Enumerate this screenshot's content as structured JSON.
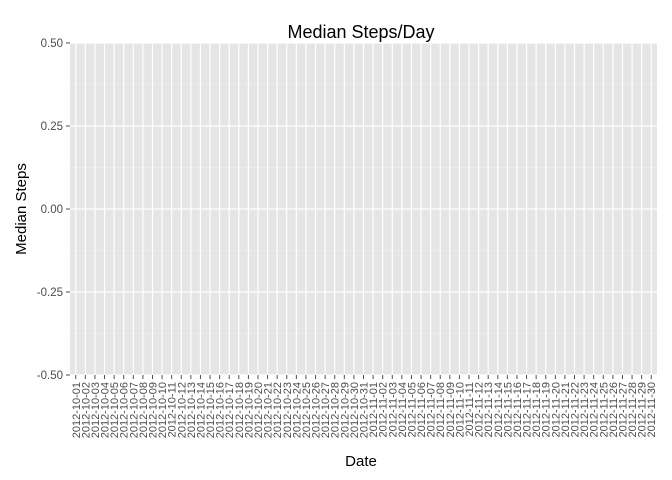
{
  "chart_data": {
    "type": "bar",
    "title": "Median Steps/Day",
    "xlabel": "Date",
    "ylabel": "Median Steps",
    "ylim": [
      -0.5,
      0.5
    ],
    "yticks": [
      "0.50",
      "0.25",
      "0.00",
      "-0.25",
      "-0.50"
    ],
    "ytick_values": [
      0.5,
      0.25,
      0,
      -0.25,
      -0.5
    ],
    "categories": [
      "2012-10-01",
      "2012-10-02",
      "2012-10-03",
      "2012-10-04",
      "2012-10-05",
      "2012-10-06",
      "2012-10-07",
      "2012-10-08",
      "2012-10-09",
      "2012-10-10",
      "2012-10-11",
      "2012-10-12",
      "2012-10-13",
      "2012-10-14",
      "2012-10-15",
      "2012-10-16",
      "2012-10-17",
      "2012-10-18",
      "2012-10-19",
      "2012-10-20",
      "2012-10-21",
      "2012-10-22",
      "2012-10-23",
      "2012-10-24",
      "2012-10-25",
      "2012-10-26",
      "2012-10-27",
      "2012-10-28",
      "2012-10-29",
      "2012-10-30",
      "2012-10-31",
      "2012-11-01",
      "2012-11-02",
      "2012-11-03",
      "2012-11-04",
      "2012-11-05",
      "2012-11-06",
      "2012-11-07",
      "2012-11-08",
      "2012-11-09",
      "2012-11-10",
      "2012-11-11",
      "2012-11-12",
      "2012-11-13",
      "2012-11-14",
      "2012-11-15",
      "2012-11-16",
      "2012-11-17",
      "2012-11-18",
      "2012-11-19",
      "2012-11-20",
      "2012-11-21",
      "2012-11-22",
      "2012-11-23",
      "2012-11-24",
      "2012-11-25",
      "2012-11-26",
      "2012-11-27",
      "2012-11-28",
      "2012-11-29",
      "2012-11-30"
    ],
    "values": [
      0,
      0,
      0,
      0,
      0,
      0,
      0,
      0,
      0,
      0,
      0,
      0,
      0,
      0,
      0,
      0,
      0,
      0,
      0,
      0,
      0,
      0,
      0,
      0,
      0,
      0,
      0,
      0,
      0,
      0,
      0,
      0,
      0,
      0,
      0,
      0,
      0,
      0,
      0,
      0,
      0,
      0,
      0,
      0,
      0,
      0,
      0,
      0,
      0,
      0,
      0,
      0,
      0,
      0,
      0,
      0,
      0,
      0,
      0,
      0,
      0
    ],
    "grid": true,
    "colors": {
      "panel": "#e5e5e5",
      "grid": "#ffffff",
      "text": "#4d4d4d"
    }
  }
}
